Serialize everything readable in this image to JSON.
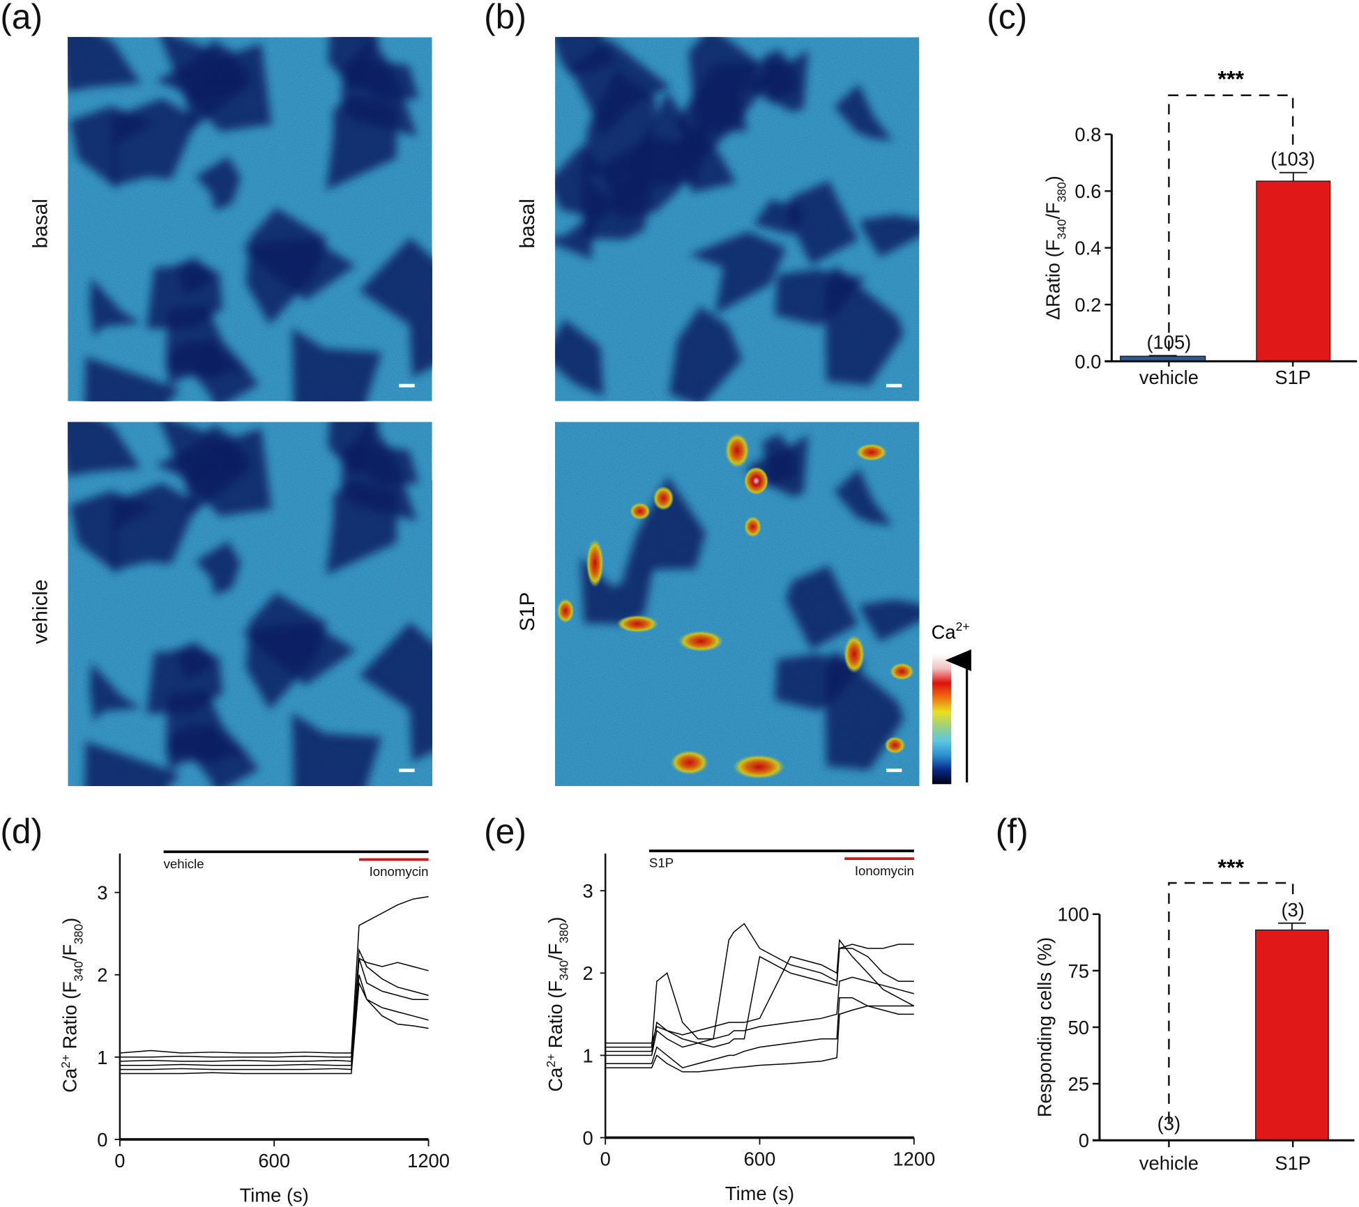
{
  "panel_labels": {
    "a": "(a)",
    "b": "(b)",
    "c": "(c)",
    "d": "(d)",
    "e": "(e)",
    "f": "(f)"
  },
  "images": {
    "a_top_label": "basal",
    "a_bottom_label": "vehicle",
    "b_top_label": "basal",
    "b_bottom_label": "S1P",
    "colorbar": {
      "label": "Ca",
      "label_sup": "2+",
      "colors": [
        "#000010",
        "#0a2a8a",
        "#2a8fd0",
        "#5cc8e0",
        "#9ad080",
        "#e8e020",
        "#f07010",
        "#e01010",
        "#f0c0c0",
        "#ffffff"
      ]
    },
    "background_color": "#3ea6da",
    "cell_color": "#0e2370"
  },
  "chart_data": [
    {
      "id": "c",
      "type": "bar",
      "categories": [
        "vehicle",
        "S1P"
      ],
      "values": [
        0.018,
        0.635
      ],
      "errors": [
        0.002,
        0.03
      ],
      "n_labels": [
        "(105)",
        "(103)"
      ],
      "colors": [
        "#2f5b8c",
        "#e01818"
      ],
      "ylabel_parts": [
        "ΔRatio (F",
        "340",
        "/F",
        "380",
        ")"
      ],
      "ylim": [
        0,
        0.8
      ],
      "yticks": [
        "0.0",
        "0.2",
        "0.4",
        "0.6",
        "0.8"
      ],
      "significance": "***"
    },
    {
      "id": "d",
      "type": "line",
      "xlabel": "Time (s)",
      "ylabel_parts": [
        "Ca",
        "2+",
        " Ratio (F",
        "340",
        "/F",
        "380",
        ")"
      ],
      "xlim": [
        0,
        1200
      ],
      "ylim": [
        0,
        3.3
      ],
      "xticks": [
        "0",
        "600",
        "1200"
      ],
      "yticks": [
        "0",
        "1",
        "2",
        "3"
      ],
      "treatments": [
        {
          "label": "vehicle",
          "start": 170,
          "end": 1200,
          "color": "#000000"
        },
        {
          "label": "Ionomycin",
          "start": 930,
          "end": 1200,
          "color": "#d01818"
        }
      ],
      "x": [
        0,
        120,
        240,
        360,
        480,
        600,
        720,
        840,
        900,
        930,
        960,
        1020,
        1080,
        1140,
        1200
      ],
      "series": [
        {
          "values": [
            1.05,
            1.08,
            1.05,
            1.06,
            1.05,
            1.05,
            1.06,
            1.05,
            1.05,
            2.6,
            2.65,
            2.75,
            2.85,
            2.92,
            2.95
          ]
        },
        {
          "values": [
            0.95,
            0.96,
            0.95,
            0.95,
            0.96,
            0.95,
            0.95,
            0.96,
            0.95,
            2.3,
            2.1,
            1.95,
            1.85,
            1.8,
            1.75
          ]
        },
        {
          "values": [
            0.9,
            0.9,
            0.91,
            0.9,
            0.9,
            0.9,
            0.91,
            0.9,
            0.9,
            2.2,
            2.15,
            2.1,
            2.15,
            2.1,
            2.05
          ]
        },
        {
          "values": [
            0.85,
            0.85,
            0.86,
            0.85,
            0.85,
            0.85,
            0.85,
            0.86,
            0.85,
            2.0,
            1.7,
            1.5,
            1.4,
            1.38,
            1.35
          ]
        },
        {
          "values": [
            1.0,
            1.0,
            1.01,
            1.0,
            1.0,
            1.0,
            1.01,
            1.0,
            1.0,
            2.2,
            1.9,
            1.8,
            1.75,
            1.7,
            1.7
          ]
        },
        {
          "values": [
            0.8,
            0.8,
            0.8,
            0.81,
            0.8,
            0.8,
            0.8,
            0.8,
            0.8,
            1.9,
            1.7,
            1.6,
            1.55,
            1.5,
            1.45
          ]
        }
      ]
    },
    {
      "id": "e",
      "type": "line",
      "xlabel": "Time (s)",
      "ylabel_parts": [
        "Ca",
        "2+",
        " Ratio (F",
        "340",
        "/F",
        "380",
        ")"
      ],
      "xlim": [
        0,
        1200
      ],
      "ylim": [
        0,
        3.3
      ],
      "xticks": [
        "0",
        "600",
        "1200"
      ],
      "yticks": [
        "0",
        "1",
        "2",
        "3"
      ],
      "treatments": [
        {
          "label": "S1P",
          "start": 170,
          "end": 1200,
          "color": "#000000"
        },
        {
          "label": "Ionomycin",
          "start": 930,
          "end": 1200,
          "color": "#d01818"
        }
      ],
      "x": [
        0,
        180,
        200,
        240,
        300,
        360,
        420,
        480,
        500,
        540,
        600,
        720,
        840,
        900,
        910,
        960,
        1020,
        1080,
        1140,
        1200
      ],
      "series": [
        {
          "values": [
            1.1,
            1.1,
            1.9,
            2.0,
            1.4,
            1.2,
            1.2,
            1.25,
            1.3,
            1.3,
            1.35,
            1.4,
            1.45,
            1.5,
            1.9,
            1.95,
            1.9,
            1.85,
            1.8,
            1.75
          ]
        },
        {
          "values": [
            1.0,
            1.0,
            1.3,
            1.2,
            1.1,
            1.15,
            1.2,
            2.4,
            2.5,
            2.6,
            2.3,
            2.1,
            2.0,
            1.9,
            2.3,
            2.3,
            2.2,
            2.0,
            1.9,
            1.9
          ]
        },
        {
          "values": [
            0.9,
            0.9,
            1.1,
            1.0,
            0.85,
            0.9,
            0.95,
            1.0,
            1.0,
            1.05,
            1.1,
            1.15,
            1.2,
            1.2,
            1.7,
            1.7,
            1.6,
            1.55,
            1.5,
            1.5
          ]
        },
        {
          "values": [
            1.05,
            1.05,
            1.4,
            1.3,
            1.2,
            1.15,
            1.1,
            1.15,
            1.2,
            1.2,
            2.2,
            2.0,
            1.9,
            1.85,
            2.3,
            2.35,
            2.3,
            2.3,
            2.35,
            2.35
          ]
        },
        {
          "values": [
            0.85,
            0.85,
            1.0,
            0.9,
            0.8,
            0.8,
            0.82,
            0.84,
            0.85,
            0.86,
            0.88,
            0.9,
            0.93,
            0.97,
            1.5,
            1.55,
            1.6,
            1.6,
            1.6,
            1.6
          ]
        },
        {
          "values": [
            1.15,
            1.15,
            1.35,
            1.3,
            1.25,
            1.3,
            1.35,
            1.4,
            1.4,
            1.4,
            1.45,
            2.2,
            2.1,
            2.0,
            2.4,
            2.2,
            2.0,
            1.8,
            1.7,
            1.6
          ]
        }
      ]
    },
    {
      "id": "f",
      "type": "bar",
      "categories": [
        "vehicle",
        "S1P"
      ],
      "values": [
        0,
        93
      ],
      "errors": [
        0,
        3
      ],
      "n_labels": [
        "(3)",
        "(3)"
      ],
      "colors": [
        "#2f5b8c",
        "#e01818"
      ],
      "ylabel_parts": [
        "Responding cells (%)"
      ],
      "ylim": [
        0,
        100
      ],
      "yticks": [
        "0",
        "25",
        "50",
        "75",
        "100"
      ],
      "significance": "***"
    }
  ]
}
